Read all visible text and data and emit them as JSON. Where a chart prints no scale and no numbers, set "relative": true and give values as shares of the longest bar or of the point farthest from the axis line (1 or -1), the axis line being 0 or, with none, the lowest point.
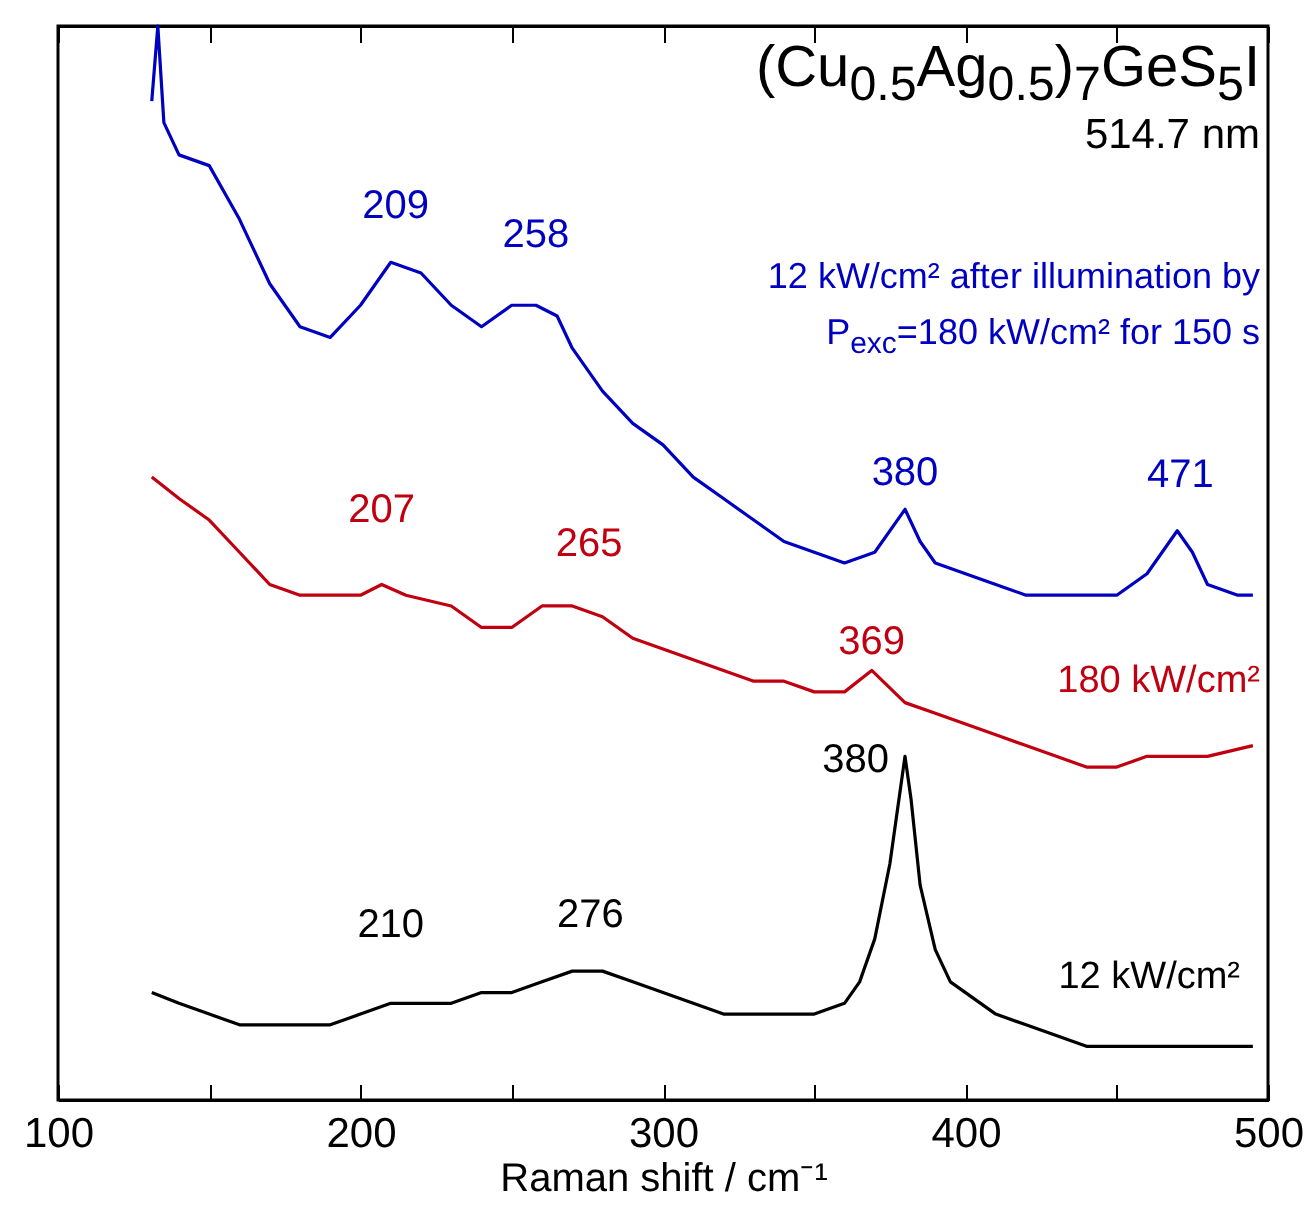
{
  "chart_data": {
    "type": "line",
    "title": "(Cu$_{0.5}$Ag$_{0.5}$)$_{7}$GeS$_{5}$I",
    "subtitle": "514.7 nm",
    "xlabel": "Raman shift / cm⁻¹",
    "relative": true,
    "xlim": [
      100,
      500
    ],
    "xticks": [
      100,
      {
        "value": 150,
        "label": null
      },
      200,
      {
        "value": 250,
        "label": null
      },
      300,
      {
        "value": 350,
        "label": null
      },
      400,
      {
        "value": 450,
        "label": null
      },
      500
    ],
    "grid": false,
    "tick_labels": "x",
    "series": [
      {
        "name": "12 kW/cm² after illumination by P$_{exc}$=180 kW/cm² for 150 s",
        "color": "#0000c0",
        "x": [
          131,
          133,
          135,
          140,
          150,
          160,
          170,
          180,
          190,
          200,
          210,
          220,
          230,
          240,
          250,
          258,
          265,
          270,
          280,
          290,
          300,
          310,
          320,
          330,
          340,
          350,
          360,
          370,
          380,
          385,
          390,
          400,
          410,
          420,
          430,
          440,
          450,
          460,
          470,
          475,
          480,
          490,
          495
        ],
        "values": [
          0.93,
          1.0,
          0.91,
          0.88,
          0.87,
          0.82,
          0.76,
          0.72,
          0.71,
          0.74,
          0.78,
          0.77,
          0.74,
          0.72,
          0.74,
          0.74,
          0.73,
          0.7,
          0.66,
          0.63,
          0.61,
          0.58,
          0.56,
          0.54,
          0.52,
          0.51,
          0.5,
          0.51,
          0.55,
          0.52,
          0.5,
          0.49,
          0.48,
          0.47,
          0.47,
          0.47,
          0.47,
          0.49,
          0.53,
          0.51,
          0.48,
          0.47,
          0.47
        ]
      },
      {
        "name": "180 kW/cm²",
        "color": "#c00010",
        "x": [
          131,
          140,
          150,
          160,
          170,
          180,
          190,
          200,
          207,
          215,
          230,
          240,
          250,
          260,
          270,
          280,
          290,
          300,
          310,
          320,
          330,
          340,
          350,
          360,
          369,
          380,
          390,
          400,
          410,
          420,
          430,
          440,
          450,
          460,
          470,
          480,
          495
        ],
        "values": [
          0.58,
          0.56,
          0.54,
          0.51,
          0.48,
          0.47,
          0.47,
          0.47,
          0.48,
          0.47,
          0.46,
          0.44,
          0.44,
          0.46,
          0.46,
          0.45,
          0.43,
          0.42,
          0.41,
          0.4,
          0.39,
          0.39,
          0.38,
          0.38,
          0.4,
          0.37,
          0.36,
          0.35,
          0.34,
          0.33,
          0.32,
          0.31,
          0.31,
          0.32,
          0.32,
          0.32,
          0.33
        ]
      },
      {
        "name": "12 kW/cm²",
        "color": "#000000",
        "x": [
          131,
          140,
          150,
          160,
          170,
          180,
          190,
          200,
          210,
          220,
          230,
          240,
          250,
          260,
          270,
          280,
          290,
          300,
          310,
          320,
          330,
          340,
          350,
          360,
          365,
          370,
          375,
          378,
          380,
          382,
          385,
          390,
          395,
          400,
          410,
          420,
          430,
          440,
          450,
          460,
          470,
          480,
          495
        ],
        "values": [
          0.1,
          0.09,
          0.08,
          0.07,
          0.07,
          0.07,
          0.07,
          0.08,
          0.09,
          0.09,
          0.09,
          0.1,
          0.1,
          0.11,
          0.12,
          0.12,
          0.11,
          0.1,
          0.09,
          0.08,
          0.08,
          0.08,
          0.08,
          0.09,
          0.11,
          0.15,
          0.22,
          0.28,
          0.32,
          0.28,
          0.2,
          0.14,
          0.11,
          0.1,
          0.08,
          0.07,
          0.06,
          0.05,
          0.05,
          0.05,
          0.05,
          0.05,
          0.05
        ]
      }
    ],
    "annotations": [
      {
        "text": "209",
        "x": 209,
        "y": 0.78
      },
      {
        "text": "258",
        "x": 258,
        "y": 0.74
      },
      {
        "text": "380",
        "x": 380,
        "y": 0.55
      },
      {
        "text": "471",
        "x": 471,
        "y": 0.53
      },
      {
        "text": "207",
        "x": 207,
        "y": 0.48
      },
      {
        "text": "265",
        "x": 265,
        "y": 0.46
      },
      {
        "text": "369",
        "x": 369,
        "y": 0.4
      },
      {
        "text": "380",
        "x": 380,
        "y": 0.32
      },
      {
        "text": "210",
        "x": 210,
        "y": 0.09
      },
      {
        "text": "276",
        "x": 276,
        "y": 0.12
      }
    ]
  }
}
